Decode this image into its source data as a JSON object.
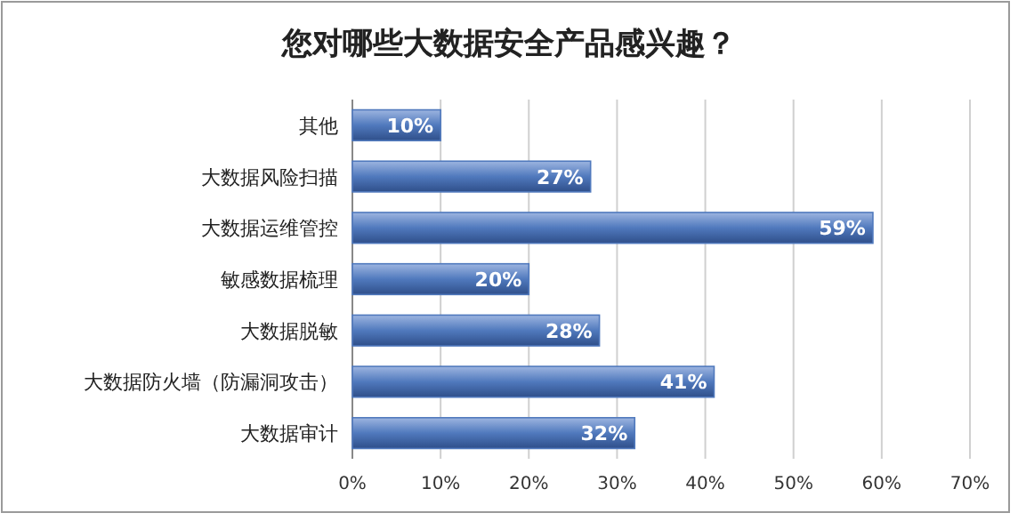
{
  "chart_data": {
    "type": "bar",
    "orientation": "horizontal",
    "title": "您对哪些大数据安全产品感兴趣？",
    "categories": [
      "其他",
      "大数据风险扫描",
      "大数据运维管控",
      "敏感数据梳理",
      "大数据脱敏",
      "大数据防火墙（防漏洞攻击）",
      "大数据审计"
    ],
    "values": [
      10,
      27,
      59,
      20,
      28,
      41,
      32
    ],
    "value_labels": [
      "10%",
      "27%",
      "59%",
      "20%",
      "28%",
      "41%",
      "32%"
    ],
    "color": "#5079bd",
    "xlim": [
      0,
      70
    ],
    "xticks": [
      {
        "value": 0,
        "label": "0%"
      },
      {
        "value": 10,
        "label": "10%"
      },
      {
        "value": 20,
        "label": "20%"
      },
      {
        "value": 30,
        "label": "30%"
      },
      {
        "value": 40,
        "label": "40%"
      },
      {
        "value": 50,
        "label": "50%"
      },
      {
        "value": 60,
        "label": "60%"
      },
      {
        "value": 70,
        "label": "70%"
      }
    ],
    "grid": "x"
  }
}
